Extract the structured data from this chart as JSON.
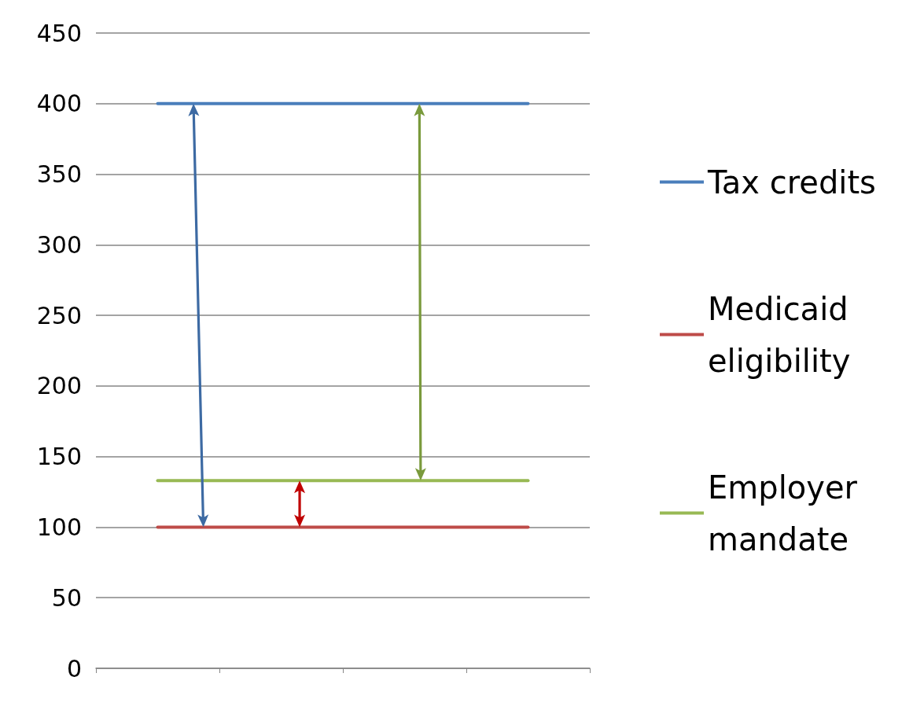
{
  "chart_data": {
    "type": "line",
    "categories": [
      null,
      null,
      null,
      null
    ],
    "series": [
      {
        "name": "Tax credits",
        "color": "#4a7ebb",
        "values": [
          400,
          400,
          400,
          400
        ]
      },
      {
        "name": "Medicaid eligibility",
        "color": "#be4b48",
        "values": [
          100,
          100,
          100,
          100
        ]
      },
      {
        "name": "Employer mandate",
        "color": "#98b954",
        "values": [
          133,
          133,
          133,
          133
        ]
      }
    ],
    "ylim": [
      0,
      450
    ],
    "yticks": [
      0,
      50,
      100,
      150,
      200,
      250,
      300,
      350,
      400,
      450
    ],
    "grid": "y",
    "legend": "right",
    "marker": "none",
    "line_style": "solid"
  }
}
